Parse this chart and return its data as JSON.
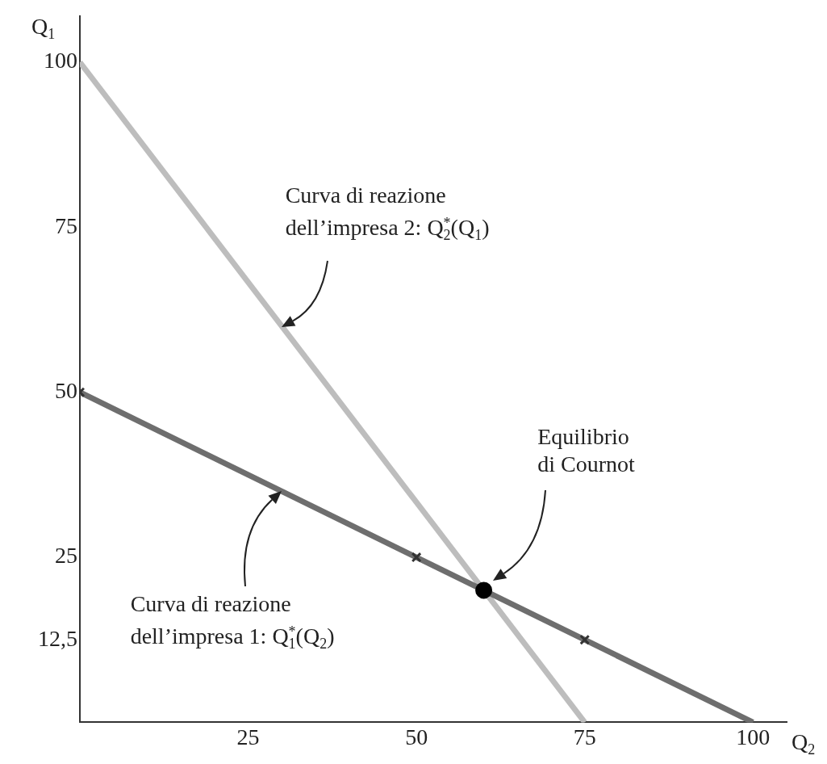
{
  "chart_data": {
    "type": "line",
    "xlabel": "Q$_{2}$",
    "ylabel": "Q$_{1}$",
    "xlim": [
      0,
      105
    ],
    "ylim": [
      0,
      107
    ],
    "xticks": [
      25,
      50,
      75,
      100
    ],
    "yticks": [
      {
        "value": 12.5,
        "label": "12,5"
      },
      25,
      50,
      75,
      100
    ],
    "grid": false,
    "legend": false,
    "series": [
      {
        "type": "line",
        "color": "#6e6e6e",
        "x": [
          0,
          100
        ],
        "values": [
          50,
          0
        ],
        "marker": "none"
      },
      {
        "type": "line",
        "color": "#bdbdbd",
        "x": [
          0,
          75
        ],
        "values": [
          100,
          0
        ],
        "marker": "none"
      },
      {
        "type": "scatter",
        "color": "#333333",
        "x": [
          0,
          50,
          75
        ],
        "values": [
          50,
          25,
          12.5
        ],
        "marker": "cross"
      },
      {
        "type": "scatter",
        "color": "#000000",
        "x": [
          60
        ],
        "values": [
          20
        ],
        "marker": "circle"
      }
    ],
    "annotations": [
      "Curva di reazione\ndell’impresa 2: Q$^{*}$$_{2}$(Q$_{1}$)",
      "Curva di reazione\ndell’impresa 1: Q$^{*}$$_{1}$(Q$_{2}$)",
      "Equilibrio\ndi Cournot"
    ]
  }
}
